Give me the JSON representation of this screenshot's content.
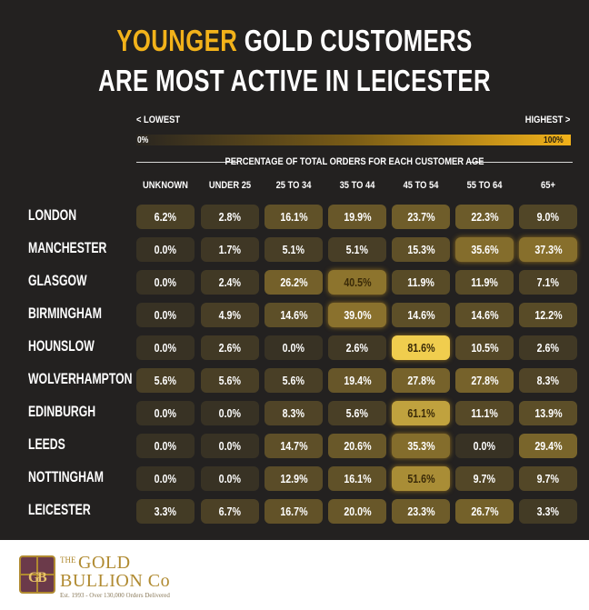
{
  "header": {
    "title_highlight": "YOUNGER",
    "title_rest": " GOLD CUSTOMERS",
    "title_line2": "ARE MOST ACTIVE IN LEICESTER"
  },
  "scale": {
    "low_label": "< LOWEST",
    "high_label": "HIGHEST >",
    "min_text": "0%",
    "max_text": "100%"
  },
  "colors": {
    "background": "#232120",
    "accent": "#f2b21a",
    "text": "#ffffff"
  },
  "chart_data": {
    "type": "heatmap",
    "title": "YOUNGER GOLD CUSTOMERS ARE MOST ACTIVE IN LEICESTER",
    "subtitle": "PERCENTAGE OF TOTAL ORDERS FOR EACH CUSTOMER AGE",
    "columns": [
      "UNKNOWN",
      "UNDER 25",
      "25 TO 34",
      "35 TO 44",
      "45 TO 54",
      "55 TO 64",
      "65+"
    ],
    "rows": [
      "LONDON",
      "MANCHESTER",
      "GLASGOW",
      "BIRMINGHAM",
      "HOUNSLOW",
      "WOLVERHAMPTON",
      "EDINBURGH",
      "LEEDS",
      "NOTTINGHAM",
      "LEICESTER"
    ],
    "values": [
      [
        6.2,
        2.8,
        16.1,
        19.9,
        23.7,
        22.3,
        9.0
      ],
      [
        0.0,
        1.7,
        5.1,
        5.1,
        15.3,
        35.6,
        37.3
      ],
      [
        0.0,
        2.4,
        26.2,
        40.5,
        11.9,
        11.9,
        7.1
      ],
      [
        0.0,
        4.9,
        14.6,
        39.0,
        14.6,
        14.6,
        12.2
      ],
      [
        0.0,
        2.6,
        0.0,
        2.6,
        81.6,
        10.5,
        2.6
      ],
      [
        5.6,
        5.6,
        5.6,
        19.4,
        27.8,
        27.8,
        8.3
      ],
      [
        0.0,
        0.0,
        8.3,
        5.6,
        61.1,
        11.1,
        13.9
      ],
      [
        0.0,
        0.0,
        14.7,
        20.6,
        35.3,
        0.0,
        29.4
      ],
      [
        0.0,
        0.0,
        12.9,
        16.1,
        51.6,
        9.7,
        9.7
      ],
      [
        3.3,
        6.7,
        16.7,
        20.0,
        23.3,
        26.7,
        3.3
      ]
    ],
    "labels": [
      [
        "6.2%",
        "2.8%",
        "16.1%",
        "19.9%",
        "23.7%",
        "22.3%",
        "9.0%"
      ],
      [
        "0.0%",
        "1.7%",
        "5.1%",
        "5.1%",
        "15.3%",
        "35.6%",
        "37.3%"
      ],
      [
        "0.0%",
        "2.4%",
        "26.2%",
        "40.5%",
        "11.9%",
        "11.9%",
        "7.1%"
      ],
      [
        "0.0%",
        "4.9%",
        "14.6%",
        "39.0%",
        "14.6%",
        "14.6%",
        "12.2%"
      ],
      [
        "0.0%",
        "2.6%",
        "0.0%",
        "2.6%",
        "81.6%",
        "10.5%",
        "2.6%"
      ],
      [
        "5.6%",
        "5.6%",
        "5.6%",
        "19.4%",
        "27.8%",
        "27.8%",
        "8.3%"
      ],
      [
        "0.0%",
        "0.0%",
        "8.3%",
        "5.6%",
        "61.1%",
        "11.1%",
        "13.9%"
      ],
      [
        "0.0%",
        "0.0%",
        "14.7%",
        "20.6%",
        "35.3%",
        "0.0%",
        "29.4%"
      ],
      [
        "0.0%",
        "0.0%",
        "12.9%",
        "16.1%",
        "51.6%",
        "9.7%",
        "9.7%"
      ],
      [
        "3.3%",
        "6.7%",
        "16.7%",
        "20.0%",
        "23.3%",
        "26.7%",
        "3.3%"
      ]
    ],
    "range": [
      0,
      100
    ]
  },
  "footer": {
    "logo_the": "THE",
    "logo_gold": "GOLD",
    "logo_bullion": "BULLION Co",
    "logo_tagline": "Est. 1993 - Over 130,000 Orders Delivered",
    "logo_icon": "gold-bullion-crest-icon"
  }
}
